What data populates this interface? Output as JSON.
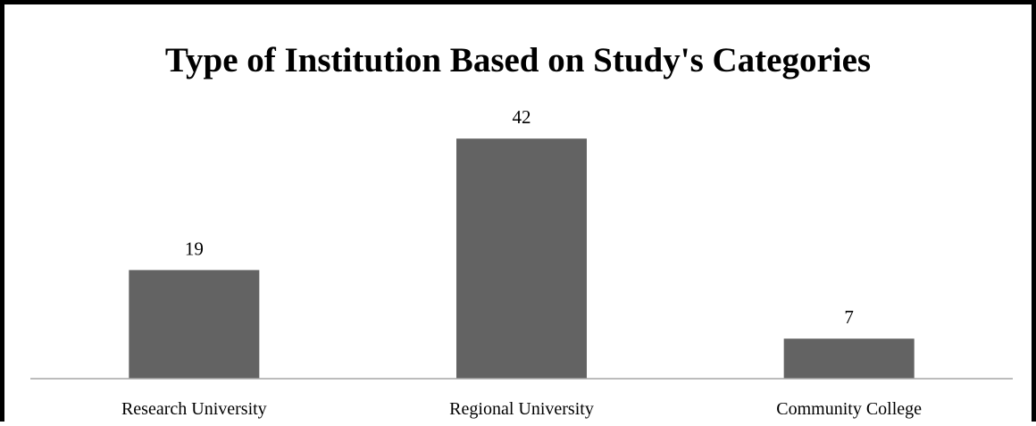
{
  "chart_data": {
    "type": "bar",
    "title": "Type of Institution Based on Study's Categories",
    "xlabel": "",
    "ylabel": "",
    "categories": [
      "Research University",
      "Regional University",
      "Community College"
    ],
    "values": [
      19,
      42,
      7
    ],
    "ylim": [
      0,
      45
    ],
    "grid": false,
    "legend": "none",
    "data_labels": true,
    "colors": {
      "bar": "#636363",
      "axis": "#a6a6a6",
      "frame": "#000000",
      "background": "#ffffff"
    }
  }
}
